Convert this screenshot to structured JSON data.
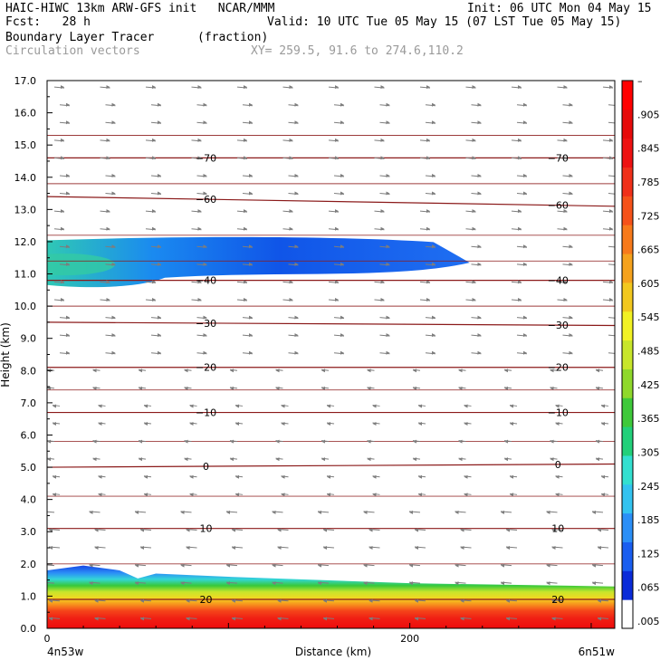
{
  "header": {
    "line1_left": "HAIC-HIWC 13km ARW-GFS init   NCAR/MMM",
    "line1_right": "Init: 06 UTC Mon 04 May 15",
    "line2_left": "Fcst:   28 h",
    "line2_right": "Valid: 10 UTC Tue 05 May 15 (07 LST Tue 05 May 15)",
    "line3_left": "Boundary Layer Tracer",
    "line3_mid": "(fraction)",
    "line4_left": "Circulation vectors",
    "line4_mid": "XY= 259.5, 91.6 to 274.6,110.2"
  },
  "bottom_labels": {
    "left": "4n53w",
    "right": "6n51w"
  },
  "colors": {
    "contour": "#8b1a1a",
    "vector": "#7d7d7d",
    "frame": "#000000"
  },
  "chart_data": {
    "type": "heatmap",
    "xlabel": "Distance (km)",
    "ylabel": "Height (km)",
    "xlim": [
      0,
      313
    ],
    "ylim": [
      0,
      17
    ],
    "x_ticks": [
      0,
      200
    ],
    "x_tick_labels": [
      "0",
      "200"
    ],
    "y_ticks": [
      0,
      1,
      2,
      3,
      4,
      5,
      6,
      7,
      8,
      9,
      10,
      11,
      12,
      13,
      14,
      15,
      16,
      17
    ],
    "y_tick_labels": [
      "0.0",
      "1.0",
      "2.0",
      "3.0",
      "4.0",
      "5.0",
      "6.0",
      "7.0",
      "8.0",
      "9.0",
      "10.0",
      "11.0",
      "12.0",
      "13.0",
      "14.0",
      "15.0",
      "16.0",
      "17.0"
    ],
    "colorbar": {
      "labels": [
        ".005",
        ".065",
        ".125",
        ".185",
        ".245",
        ".305",
        ".365",
        ".425",
        ".485",
        ".545",
        ".605",
        ".665",
        ".725",
        ".785",
        ".845",
        ".905",
        "–"
      ],
      "colors": [
        "#ffffff",
        "#0a2bd8",
        "#1a5ef0",
        "#2b8ff7",
        "#33c3f0",
        "#33e0d0",
        "#22d07a",
        "#3ec93a",
        "#8fd82b",
        "#c8e62b",
        "#f2f224",
        "#f2c81f",
        "#f5a21d",
        "#f77a1b",
        "#f5521a",
        "#f0301a",
        "#ee1212",
        "#e60a0a",
        "#ff0000"
      ]
    },
    "temperature_contours": [
      {
        "label": "-70",
        "y_left": 14.6,
        "y_right": 14.6
      },
      {
        "label": "-60",
        "y_left": 13.4,
        "y_right": 13.1
      },
      {
        "label": "-40",
        "y_left": 10.8,
        "y_right": 10.8
      },
      {
        "label": "-30",
        "y_left": 9.5,
        "y_right": 9.4
      },
      {
        "label": "-20",
        "y_left": 8.1,
        "y_right": 8.1
      },
      {
        "label": "-10",
        "y_left": 6.7,
        "y_right": 6.7
      },
      {
        "label": "0",
        "y_left": 5.0,
        "y_right": 5.1
      },
      {
        "label": "10",
        "y_left": 3.1,
        "y_right": 3.1
      },
      {
        "label": "20",
        "y_left": 0.9,
        "y_right": 0.9
      }
    ],
    "upper_tracer_layer": {
      "x_start": 0,
      "x_end": 233,
      "base_km": 10.6,
      "top_km": 12.1,
      "max_fraction": 0.24
    },
    "boundary_layer_top_km": [
      {
        "x": 0,
        "y": 1.8
      },
      {
        "x": 20,
        "y": 1.95
      },
      {
        "x": 40,
        "y": 1.8
      },
      {
        "x": 50,
        "y": 1.55
      },
      {
        "x": 60,
        "y": 1.7
      },
      {
        "x": 100,
        "y": 1.6
      },
      {
        "x": 200,
        "y": 1.4
      },
      {
        "x": 313,
        "y": 1.3
      }
    ]
  }
}
